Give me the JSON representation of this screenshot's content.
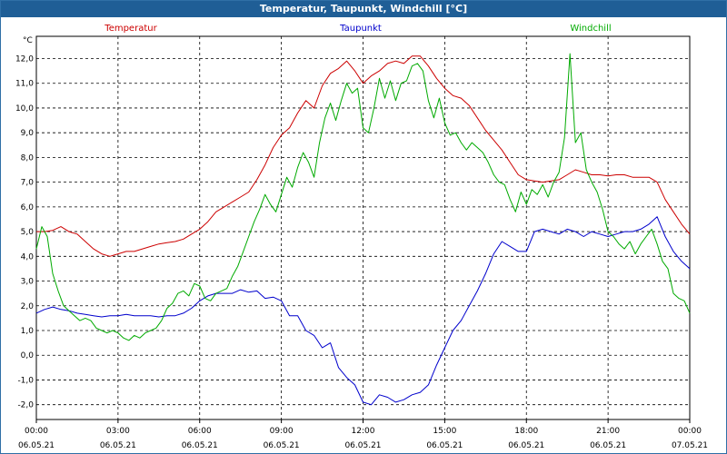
{
  "chart_data": {
    "type": "line",
    "title": "Temperatur, Taupunkt, Windchill [°C]",
    "ylabel": "°C",
    "xlabel": "",
    "ylim": [
      -2.6,
      12.9
    ],
    "xlim": [
      0,
      24
    ],
    "grid": true,
    "legend_placement": "top",
    "y_ticks": [
      "12,0",
      "11,0",
      "10,0",
      "9,0",
      "8,0",
      "7,0",
      "6,0",
      "5,0",
      "4,0",
      "3,0",
      "2,0",
      "1,0",
      "0,0",
      "-1,0",
      "-2,0"
    ],
    "y_tick_values": [
      12,
      11,
      10,
      9,
      8,
      7,
      6,
      5,
      4,
      3,
      2,
      1,
      0,
      -1,
      -2
    ],
    "x_ticks": [
      {
        "time": "00:00",
        "date": "06.05.21",
        "hour": 0
      },
      {
        "time": "03:00",
        "date": "06.05.21",
        "hour": 3
      },
      {
        "time": "06:00",
        "date": "06.05.21",
        "hour": 6
      },
      {
        "time": "09:00",
        "date": "06.05.21",
        "hour": 9
      },
      {
        "time": "12:00",
        "date": "06.05.21",
        "hour": 12
      },
      {
        "time": "15:00",
        "date": "06.05.21",
        "hour": 15
      },
      {
        "time": "18:00",
        "date": "06.05.21",
        "hour": 18
      },
      {
        "time": "21:00",
        "date": "06.05.21",
        "hour": 21
      },
      {
        "time": "00:00",
        "date": "07.05.21",
        "hour": 24
      }
    ],
    "series": [
      {
        "name": "Temperatur",
        "color": "#cc0000",
        "points": [
          [
            0,
            5.0
          ],
          [
            0.3,
            5.0
          ],
          [
            0.6,
            5.05
          ],
          [
            0.9,
            5.2
          ],
          [
            1.2,
            5.0
          ],
          [
            1.5,
            4.9
          ],
          [
            1.8,
            4.6
          ],
          [
            2.1,
            4.3
          ],
          [
            2.4,
            4.1
          ],
          [
            2.7,
            4.0
          ],
          [
            3.0,
            4.1
          ],
          [
            3.3,
            4.2
          ],
          [
            3.6,
            4.2
          ],
          [
            3.9,
            4.3
          ],
          [
            4.2,
            4.4
          ],
          [
            4.5,
            4.5
          ],
          [
            4.8,
            4.55
          ],
          [
            5.1,
            4.6
          ],
          [
            5.4,
            4.7
          ],
          [
            5.7,
            4.9
          ],
          [
            6.0,
            5.1
          ],
          [
            6.3,
            5.4
          ],
          [
            6.6,
            5.8
          ],
          [
            6.9,
            6.0
          ],
          [
            7.2,
            6.2
          ],
          [
            7.5,
            6.4
          ],
          [
            7.8,
            6.6
          ],
          [
            8.1,
            7.1
          ],
          [
            8.4,
            7.7
          ],
          [
            8.7,
            8.4
          ],
          [
            9.0,
            8.9
          ],
          [
            9.3,
            9.2
          ],
          [
            9.6,
            9.8
          ],
          [
            9.9,
            10.3
          ],
          [
            10.2,
            10.0
          ],
          [
            10.5,
            10.9
          ],
          [
            10.8,
            11.4
          ],
          [
            11.1,
            11.6
          ],
          [
            11.4,
            11.9
          ],
          [
            11.7,
            11.5
          ],
          [
            12.0,
            11.0
          ],
          [
            12.3,
            11.3
          ],
          [
            12.6,
            11.5
          ],
          [
            12.9,
            11.8
          ],
          [
            13.2,
            11.9
          ],
          [
            13.5,
            11.8
          ],
          [
            13.8,
            12.1
          ],
          [
            14.1,
            12.1
          ],
          [
            14.4,
            11.7
          ],
          [
            14.7,
            11.2
          ],
          [
            15.0,
            10.8
          ],
          [
            15.3,
            10.5
          ],
          [
            15.6,
            10.4
          ],
          [
            15.9,
            10.1
          ],
          [
            16.2,
            9.6
          ],
          [
            16.5,
            9.1
          ],
          [
            16.8,
            8.7
          ],
          [
            17.1,
            8.3
          ],
          [
            17.4,
            7.8
          ],
          [
            17.7,
            7.3
          ],
          [
            18.0,
            7.1
          ],
          [
            18.3,
            7.05
          ],
          [
            18.6,
            7.0
          ],
          [
            18.9,
            7.05
          ],
          [
            19.2,
            7.1
          ],
          [
            19.5,
            7.3
          ],
          [
            19.8,
            7.5
          ],
          [
            20.1,
            7.4
          ],
          [
            20.4,
            7.3
          ],
          [
            20.7,
            7.3
          ],
          [
            21.0,
            7.25
          ],
          [
            21.3,
            7.3
          ],
          [
            21.6,
            7.3
          ],
          [
            21.9,
            7.2
          ],
          [
            22.2,
            7.2
          ],
          [
            22.5,
            7.2
          ],
          [
            22.8,
            7.0
          ],
          [
            23.1,
            6.3
          ],
          [
            23.4,
            5.8
          ],
          [
            23.7,
            5.3
          ],
          [
            24.0,
            4.9
          ]
        ]
      },
      {
        "name": "Taupunkt",
        "color": "#0000cc",
        "points": [
          [
            0,
            1.7
          ],
          [
            0.3,
            1.85
          ],
          [
            0.6,
            1.95
          ],
          [
            0.9,
            1.85
          ],
          [
            1.2,
            1.8
          ],
          [
            1.5,
            1.7
          ],
          [
            1.8,
            1.65
          ],
          [
            2.1,
            1.6
          ],
          [
            2.4,
            1.55
          ],
          [
            2.7,
            1.6
          ],
          [
            3.0,
            1.6
          ],
          [
            3.3,
            1.65
          ],
          [
            3.6,
            1.6
          ],
          [
            3.9,
            1.6
          ],
          [
            4.2,
            1.6
          ],
          [
            4.5,
            1.55
          ],
          [
            4.8,
            1.6
          ],
          [
            5.1,
            1.6
          ],
          [
            5.4,
            1.7
          ],
          [
            5.7,
            1.9
          ],
          [
            6.0,
            2.2
          ],
          [
            6.3,
            2.4
          ],
          [
            6.6,
            2.5
          ],
          [
            6.9,
            2.5
          ],
          [
            7.2,
            2.5
          ],
          [
            7.5,
            2.65
          ],
          [
            7.8,
            2.55
          ],
          [
            8.1,
            2.6
          ],
          [
            8.4,
            2.3
          ],
          [
            8.7,
            2.35
          ],
          [
            9.0,
            2.2
          ],
          [
            9.3,
            1.6
          ],
          [
            9.6,
            1.6
          ],
          [
            9.9,
            1.0
          ],
          [
            10.2,
            0.8
          ],
          [
            10.5,
            0.3
          ],
          [
            10.8,
            0.5
          ],
          [
            11.1,
            -0.5
          ],
          [
            11.4,
            -0.9
          ],
          [
            11.7,
            -1.2
          ],
          [
            12.0,
            -1.9
          ],
          [
            12.3,
            -2.0
          ],
          [
            12.6,
            -1.6
          ],
          [
            12.9,
            -1.7
          ],
          [
            13.2,
            -1.9
          ],
          [
            13.5,
            -1.8
          ],
          [
            13.8,
            -1.6
          ],
          [
            14.1,
            -1.5
          ],
          [
            14.4,
            -1.2
          ],
          [
            14.7,
            -0.4
          ],
          [
            15.0,
            0.3
          ],
          [
            15.3,
            1.0
          ],
          [
            15.6,
            1.4
          ],
          [
            15.9,
            2.0
          ],
          [
            16.2,
            2.6
          ],
          [
            16.5,
            3.3
          ],
          [
            16.8,
            4.1
          ],
          [
            17.1,
            4.6
          ],
          [
            17.4,
            4.4
          ],
          [
            17.7,
            4.2
          ],
          [
            18.0,
            4.2
          ],
          [
            18.3,
            5.0
          ],
          [
            18.6,
            5.1
          ],
          [
            18.9,
            5.0
          ],
          [
            19.2,
            4.9
          ],
          [
            19.5,
            5.1
          ],
          [
            19.8,
            5.0
          ],
          [
            20.1,
            4.8
          ],
          [
            20.4,
            5.0
          ],
          [
            20.7,
            4.9
          ],
          [
            21.0,
            4.8
          ],
          [
            21.3,
            4.9
          ],
          [
            21.6,
            5.0
          ],
          [
            21.9,
            5.0
          ],
          [
            22.2,
            5.1
          ],
          [
            22.5,
            5.3
          ],
          [
            22.8,
            5.6
          ],
          [
            23.1,
            4.8
          ],
          [
            23.4,
            4.2
          ],
          [
            23.7,
            3.8
          ],
          [
            24.0,
            3.5
          ]
        ]
      },
      {
        "name": "Windchill",
        "color": "#00aa00",
        "points": [
          [
            0,
            4.3
          ],
          [
            0.2,
            5.2
          ],
          [
            0.4,
            4.8
          ],
          [
            0.6,
            3.3
          ],
          [
            0.8,
            2.6
          ],
          [
            1.0,
            2.0
          ],
          [
            1.2,
            1.8
          ],
          [
            1.4,
            1.6
          ],
          [
            1.6,
            1.4
          ],
          [
            1.8,
            1.5
          ],
          [
            2.0,
            1.4
          ],
          [
            2.2,
            1.1
          ],
          [
            2.4,
            1.0
          ],
          [
            2.6,
            0.9
          ],
          [
            2.8,
            1.0
          ],
          [
            3.0,
            0.9
          ],
          [
            3.2,
            0.7
          ],
          [
            3.4,
            0.6
          ],
          [
            3.6,
            0.8
          ],
          [
            3.8,
            0.7
          ],
          [
            4.0,
            0.9
          ],
          [
            4.2,
            1.0
          ],
          [
            4.4,
            1.1
          ],
          [
            4.6,
            1.4
          ],
          [
            4.8,
            1.9
          ],
          [
            5.0,
            2.1
          ],
          [
            5.2,
            2.5
          ],
          [
            5.4,
            2.6
          ],
          [
            5.6,
            2.4
          ],
          [
            5.8,
            2.9
          ],
          [
            6.0,
            2.8
          ],
          [
            6.2,
            2.3
          ],
          [
            6.4,
            2.2
          ],
          [
            6.6,
            2.5
          ],
          [
            6.8,
            2.6
          ],
          [
            7.0,
            2.7
          ],
          [
            7.2,
            3.2
          ],
          [
            7.4,
            3.6
          ],
          [
            7.6,
            4.2
          ],
          [
            7.8,
            4.8
          ],
          [
            8.0,
            5.4
          ],
          [
            8.2,
            5.9
          ],
          [
            8.4,
            6.5
          ],
          [
            8.6,
            6.1
          ],
          [
            8.8,
            5.8
          ],
          [
            9.0,
            6.5
          ],
          [
            9.2,
            7.2
          ],
          [
            9.4,
            6.8
          ],
          [
            9.6,
            7.6
          ],
          [
            9.8,
            8.2
          ],
          [
            10.0,
            7.8
          ],
          [
            10.2,
            7.2
          ],
          [
            10.4,
            8.6
          ],
          [
            10.6,
            9.6
          ],
          [
            10.8,
            10.2
          ],
          [
            11.0,
            9.5
          ],
          [
            11.2,
            10.3
          ],
          [
            11.4,
            11.0
          ],
          [
            11.6,
            10.6
          ],
          [
            11.8,
            10.8
          ],
          [
            12.0,
            9.2
          ],
          [
            12.2,
            9.0
          ],
          [
            12.4,
            10.0
          ],
          [
            12.6,
            11.2
          ],
          [
            12.8,
            10.4
          ],
          [
            13.0,
            11.1
          ],
          [
            13.2,
            10.3
          ],
          [
            13.4,
            11.0
          ],
          [
            13.6,
            11.1
          ],
          [
            13.8,
            11.7
          ],
          [
            14.0,
            11.8
          ],
          [
            14.2,
            11.5
          ],
          [
            14.4,
            10.3
          ],
          [
            14.6,
            9.6
          ],
          [
            14.8,
            10.4
          ],
          [
            15.0,
            9.4
          ],
          [
            15.2,
            8.9
          ],
          [
            15.4,
            9.0
          ],
          [
            15.6,
            8.6
          ],
          [
            15.8,
            8.3
          ],
          [
            16.0,
            8.6
          ],
          [
            16.2,
            8.4
          ],
          [
            16.4,
            8.2
          ],
          [
            16.6,
            7.8
          ],
          [
            16.8,
            7.3
          ],
          [
            17.0,
            7.0
          ],
          [
            17.2,
            6.9
          ],
          [
            17.4,
            6.3
          ],
          [
            17.6,
            5.8
          ],
          [
            17.8,
            6.6
          ],
          [
            18.0,
            6.1
          ],
          [
            18.2,
            6.7
          ],
          [
            18.4,
            6.5
          ],
          [
            18.6,
            6.9
          ],
          [
            18.8,
            6.4
          ],
          [
            19.0,
            7.0
          ],
          [
            19.2,
            7.4
          ],
          [
            19.4,
            8.8
          ],
          [
            19.6,
            12.2
          ],
          [
            19.8,
            8.6
          ],
          [
            20.0,
            9.0
          ],
          [
            20.2,
            7.5
          ],
          [
            20.4,
            7.0
          ],
          [
            20.6,
            6.6
          ],
          [
            20.8,
            5.9
          ],
          [
            21.0,
            5.0
          ],
          [
            21.2,
            4.8
          ],
          [
            21.4,
            4.5
          ],
          [
            21.6,
            4.3
          ],
          [
            21.8,
            4.6
          ],
          [
            22.0,
            4.1
          ],
          [
            22.2,
            4.5
          ],
          [
            22.4,
            4.8
          ],
          [
            22.6,
            5.1
          ],
          [
            22.8,
            4.5
          ],
          [
            23.0,
            3.8
          ],
          [
            23.2,
            3.5
          ],
          [
            23.4,
            2.5
          ],
          [
            23.6,
            2.3
          ],
          [
            23.8,
            2.2
          ],
          [
            24.0,
            1.7
          ]
        ]
      }
    ]
  }
}
